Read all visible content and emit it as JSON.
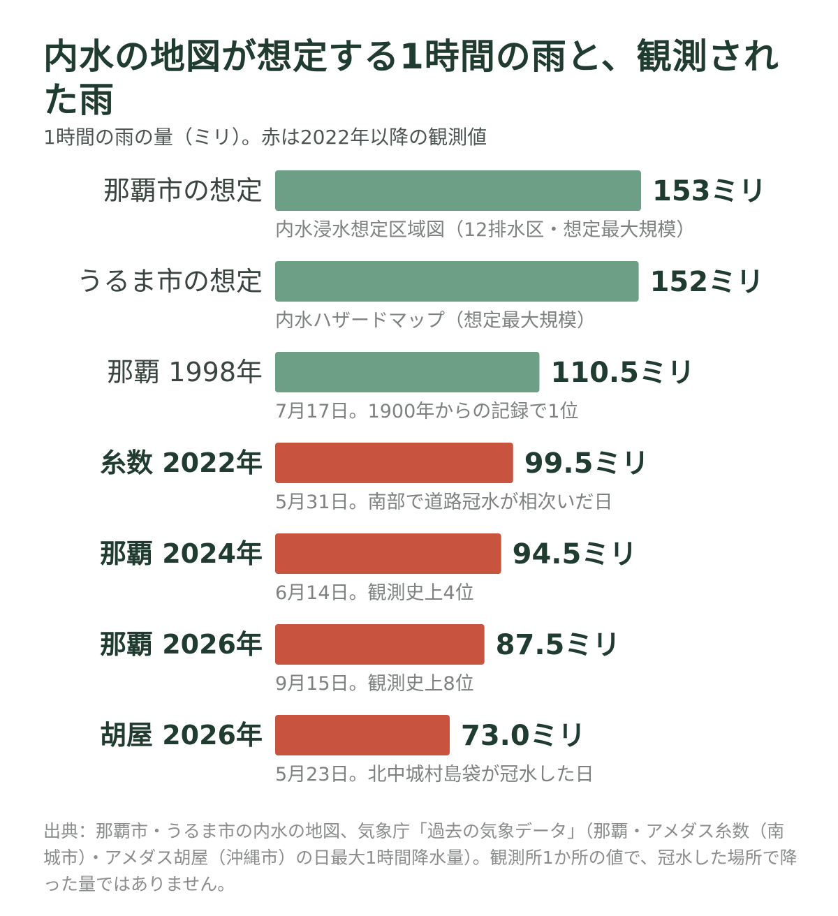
{
  "title": "内水の地図が想定する1時間の雨と、観測された雨",
  "subtitle": "1時間の雨の量（ミリ）。赤は2022年以降の観測値",
  "colors": {
    "forecast": "#6d9e86",
    "observed": "#c8543f",
    "text": "#203b30",
    "note": "#7d817f"
  },
  "chart_data": {
    "type": "bar",
    "orientation": "horizontal",
    "unit": "ミリ",
    "categories": [
      "那覇市の想定",
      "うるま市の想定",
      "那覇 1998年",
      "糸数 2022年",
      "那覇 2024年",
      "那覇 2026年",
      "胡屋 2026年"
    ],
    "values": [
      153,
      152,
      110.5,
      99.5,
      94.5,
      87.5,
      73.0
    ],
    "value_labels": [
      "153ミリ",
      "152ミリ",
      "110.5ミリ",
      "99.5ミリ",
      "94.5ミリ",
      "87.5ミリ",
      "73.0ミリ"
    ],
    "notes": [
      "内水浸水想定区域図（12排水区・想定最大規模）",
      "内水ハザードマップ（想定最大規模）",
      "7月17日。1900年からの記録で1位",
      "5月31日。南部で道路冠水が相次いだ日",
      "6月14日。観測史上4位",
      "9月15日。観測史上8位",
      "5月23日。北中城村島袋が冠水した日"
    ],
    "highlight": [
      false,
      false,
      false,
      true,
      true,
      true,
      true
    ],
    "xlim": [
      0,
      153
    ],
    "grid": false
  },
  "source": "出典：那覇市・うるま市の内水の地図、気象庁「過去の気象データ」（那覇・アメダス糸数（南城市）・アメダス胡屋（沖縄市）の日最大1時間降水量）。観測所1か所の値で、冠水した場所で降った量ではありません。"
}
